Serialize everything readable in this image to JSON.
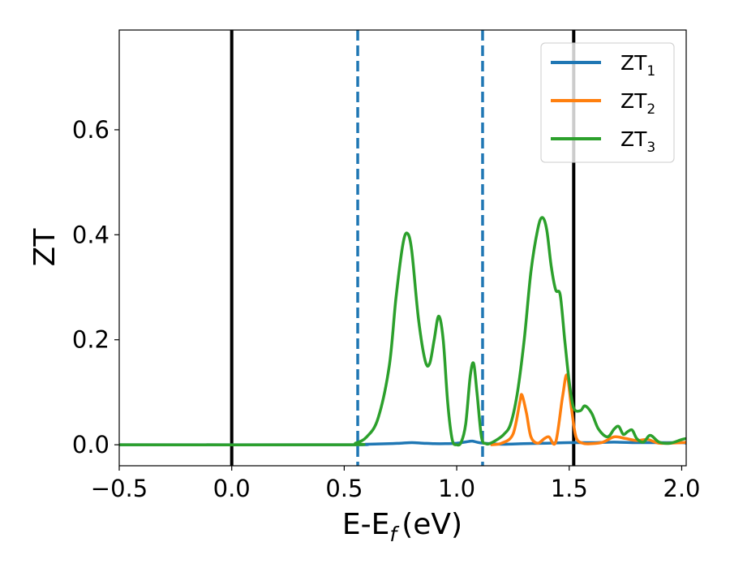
{
  "chart_data": {
    "type": "line",
    "xlabel": "E-E",
    "xlabel_sub": "f",
    "xlabel_unit": "(eV)",
    "ylabel": "ZT",
    "xlim": [
      -0.5,
      2.02
    ],
    "ylim": [
      -0.04,
      0.79
    ],
    "xticks": [
      -0.5,
      0.0,
      0.5,
      1.0,
      1.5,
      2.0
    ],
    "xtick_labels": [
      "−0.5",
      "0.0",
      "0.5",
      "1.0",
      "1.5",
      "2.0"
    ],
    "yticks": [
      0.0,
      0.2,
      0.4,
      0.6
    ],
    "ytick_labels": [
      "0.0",
      "0.2",
      "0.4",
      "0.6"
    ],
    "grid": false,
    "legend_position": "top-right",
    "vlines": [
      {
        "x": 0.0,
        "style": "solid",
        "color": "#000000"
      },
      {
        "x": 1.52,
        "style": "solid",
        "color": "#000000"
      },
      {
        "x": 0.56,
        "style": "dashed",
        "color": "#1f77b4"
      },
      {
        "x": 1.115,
        "style": "dashed",
        "color": "#1f77b4"
      }
    ],
    "series": [
      {
        "name": "ZT",
        "name_sub": "1",
        "color": "#1f77b4",
        "x": [
          -0.5,
          0.5,
          0.6,
          0.7,
          0.75,
          0.8,
          0.85,
          0.9,
          0.95,
          1.0,
          1.05,
          1.07,
          1.1,
          1.15,
          1.2,
          1.3,
          1.4,
          1.5,
          1.6,
          1.7,
          1.8,
          1.9,
          2.0,
          2.02
        ],
        "y": [
          0.0,
          0.0,
          0.001,
          0.002,
          0.003,
          0.004,
          0.003,
          0.002,
          0.002,
          0.003,
          0.006,
          0.007,
          0.004,
          0.002,
          0.001,
          0.002,
          0.003,
          0.004,
          0.004,
          0.005,
          0.004,
          0.004,
          0.004,
          0.003
        ]
      },
      {
        "name": "ZT",
        "name_sub": "2",
        "color": "#ff7f0e",
        "x": [
          1.15,
          1.2,
          1.25,
          1.28,
          1.29,
          1.31,
          1.33,
          1.36,
          1.39,
          1.41,
          1.44,
          1.47,
          1.49,
          1.51,
          1.53,
          1.56,
          1.6,
          1.65,
          1.7,
          1.75,
          1.8,
          1.85,
          1.9,
          2.0,
          2.02
        ],
        "y": [
          0.0,
          0.003,
          0.02,
          0.08,
          0.095,
          0.06,
          0.015,
          0.003,
          0.012,
          0.015,
          0.005,
          0.09,
          0.133,
          0.07,
          0.015,
          0.003,
          0.002,
          0.005,
          0.015,
          0.012,
          0.008,
          0.01,
          0.003,
          0.004,
          0.005
        ]
      },
      {
        "name": "ZT",
        "name_sub": "3",
        "color": "#2ca02c",
        "x": [
          -0.5,
          0.5,
          0.55,
          0.6,
          0.65,
          0.7,
          0.73,
          0.76,
          0.78,
          0.8,
          0.83,
          0.86,
          0.88,
          0.9,
          0.92,
          0.94,
          0.96,
          0.98,
          1.0,
          1.02,
          1.04,
          1.06,
          1.075,
          1.09,
          1.11,
          1.13,
          1.15,
          1.18,
          1.21,
          1.24,
          1.27,
          1.3,
          1.33,
          1.36,
          1.38,
          1.4,
          1.42,
          1.44,
          1.46,
          1.48,
          1.5,
          1.52,
          1.55,
          1.57,
          1.6,
          1.63,
          1.67,
          1.7,
          1.72,
          1.74,
          1.76,
          1.78,
          1.8,
          1.83,
          1.86,
          1.9,
          1.95,
          2.0,
          2.02
        ],
        "y": [
          0.0,
          0.0,
          0.003,
          0.015,
          0.05,
          0.15,
          0.28,
          0.38,
          0.403,
          0.37,
          0.24,
          0.16,
          0.155,
          0.2,
          0.245,
          0.2,
          0.08,
          0.01,
          0.0,
          0.005,
          0.04,
          0.13,
          0.155,
          0.1,
          0.015,
          0.002,
          0.003,
          0.01,
          0.02,
          0.04,
          0.1,
          0.2,
          0.33,
          0.41,
          0.433,
          0.41,
          0.34,
          0.295,
          0.285,
          0.2,
          0.12,
          0.07,
          0.065,
          0.074,
          0.06,
          0.03,
          0.015,
          0.03,
          0.035,
          0.02,
          0.025,
          0.028,
          0.012,
          0.005,
          0.018,
          0.005,
          0.003,
          0.01,
          0.012
        ]
      }
    ]
  }
}
